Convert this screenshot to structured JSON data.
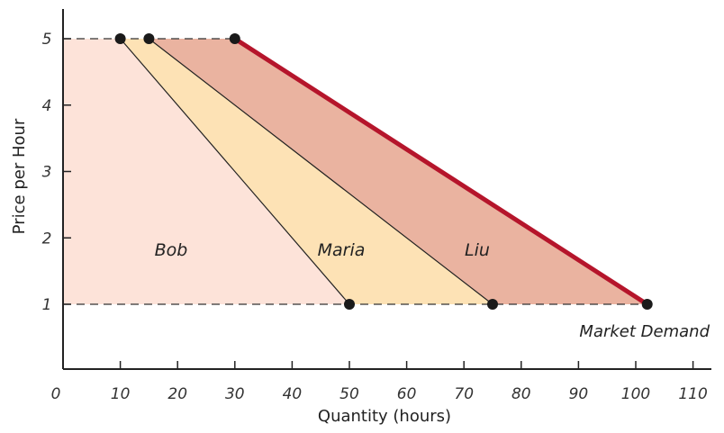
{
  "chart_data": {
    "type": "area",
    "xlabel": "Quantity (hours)",
    "ylabel": "Price per Hour",
    "xlim": [
      0,
      120
    ],
    "ylim": [
      0,
      5.4
    ],
    "x_ticks": [
      "0",
      "10",
      "20",
      "30",
      "40",
      "50",
      "60",
      "70",
      "80",
      "90",
      "100",
      "110"
    ],
    "y_ticks": [
      "1",
      "2",
      "3",
      "4",
      "5"
    ],
    "series": [
      {
        "name": "Bob",
        "points": [
          [
            10,
            5
          ],
          [
            50,
            1
          ]
        ]
      },
      {
        "name": "Maria",
        "points": [
          [
            15,
            5
          ],
          [
            75,
            1
          ]
        ]
      },
      {
        "name": "Liu",
        "points": [
          [
            30,
            5
          ],
          [
            102,
            1
          ]
        ]
      }
    ],
    "market_demand": {
      "label": "Market Demand",
      "points": [
        [
          30,
          5
        ],
        [
          102,
          1
        ]
      ]
    },
    "reference_lines": [
      5,
      1
    ],
    "colors": {
      "bob": "#fde3d9",
      "maria": "#fde2b5",
      "liu": "#eab3a0",
      "market_demand": "#b5152b",
      "dots": "#1a1a1a"
    }
  }
}
